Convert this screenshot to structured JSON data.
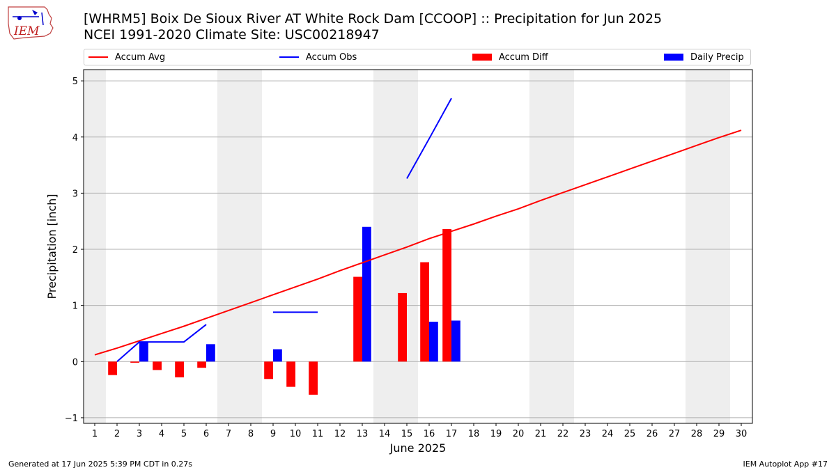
{
  "header": {
    "title_line1": "[WHRM5] Boix De Sioux River  AT White Rock Dam [CCOOP] :: Precipitation for Jun 2025",
    "title_line2": "NCEI 1991-2020 Climate Site: USC00218947",
    "logo_text": "IEM"
  },
  "legend": {
    "placement": "top",
    "items": [
      {
        "label": "Accum Avg",
        "kind": "line",
        "color": "#ff0000"
      },
      {
        "label": "Accum Obs",
        "kind": "line",
        "color": "#0000ff"
      },
      {
        "label": "Accum Diff",
        "kind": "bar",
        "color": "#ff0000"
      },
      {
        "label": "Daily Precip",
        "kind": "bar",
        "color": "#0000ff"
      }
    ]
  },
  "footer": {
    "left": "Generated at 17 Jun 2025 5:39 PM CDT in 0.27s",
    "right": "IEM Autoplot App #17"
  },
  "chart_data": {
    "type": "bar",
    "xlabel": "June 2025",
    "ylabel": "Precipitation [inch]",
    "xlim": [
      0.5,
      30.5
    ],
    "ylim": [
      -1.1,
      5.2
    ],
    "yticks": [
      -1,
      0,
      1,
      2,
      3,
      4,
      5
    ],
    "xticks": [
      "1",
      "2",
      "3",
      "4",
      "5",
      "6",
      "7",
      "8",
      "9",
      "10",
      "11",
      "12",
      "13",
      "14",
      "15",
      "16",
      "17",
      "18",
      "19",
      "20",
      "21",
      "22",
      "23",
      "24",
      "25",
      "26",
      "27",
      "28",
      "29",
      "30"
    ],
    "grid": "y",
    "weekend_shading": [
      [
        0.5,
        1.5
      ],
      [
        6.5,
        8.5
      ],
      [
        13.5,
        15.5
      ],
      [
        20.5,
        22.5
      ],
      [
        27.5,
        29.5
      ]
    ],
    "weekend_color": "#eeeeee",
    "series": [
      {
        "name": "Accum Avg",
        "kind": "line",
        "color": "#ff0000",
        "x": [
          1,
          2,
          3,
          4,
          5,
          6,
          7,
          8,
          9,
          10,
          11,
          12,
          13,
          14,
          15,
          16,
          17,
          18,
          19,
          20,
          21,
          22,
          23,
          24,
          25,
          26,
          27,
          28,
          29,
          30
        ],
        "values": [
          0.12,
          0.24,
          0.37,
          0.5,
          0.63,
          0.77,
          0.91,
          1.05,
          1.19,
          1.33,
          1.47,
          1.62,
          1.76,
          1.9,
          2.04,
          2.19,
          2.32,
          2.45,
          2.59,
          2.72,
          2.87,
          3.01,
          3.15,
          3.29,
          3.43,
          3.57,
          3.71,
          3.85,
          3.99,
          4.12
        ]
      },
      {
        "name": "Accum Obs",
        "kind": "line",
        "color": "#0000ff",
        "segments": [
          {
            "x": [
              2,
              3,
              4,
              5,
              6
            ],
            "values": [
              0.0,
              0.35,
              0.35,
              0.35,
              0.66
            ]
          },
          {
            "x": [
              9,
              10,
              11
            ],
            "values": [
              0.88,
              0.88,
              0.88
            ]
          },
          {
            "x": [
              15,
              16,
              17
            ],
            "values": [
              3.26,
              3.97,
              4.69
            ]
          }
        ]
      },
      {
        "name": "Accum Diff",
        "kind": "bar",
        "color": "#ff0000",
        "x": [
          2,
          3,
          4,
          5,
          6,
          9,
          10,
          11,
          13,
          15,
          16,
          17
        ],
        "values": [
          -0.24,
          -0.02,
          -0.15,
          -0.28,
          -0.11,
          -0.31,
          -0.45,
          -0.59,
          1.51,
          1.22,
          1.77,
          2.36
        ]
      },
      {
        "name": "Daily Precip",
        "kind": "bar",
        "color": "#0000ff",
        "x": [
          3,
          6,
          9,
          13,
          16,
          17
        ],
        "values": [
          0.35,
          0.31,
          0.22,
          2.4,
          0.71,
          0.73
        ]
      }
    ]
  }
}
